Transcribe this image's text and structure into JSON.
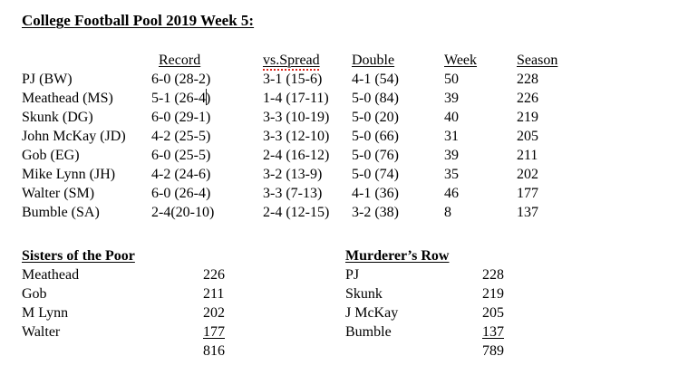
{
  "colors": {
    "background": "#ffffff",
    "text": "#000000",
    "spellcheck_underline": "#e0281e"
  },
  "title": "College Football Pool 2019 Week 5:",
  "pool_table": {
    "headers": {
      "record": "Record",
      "vs_spread": "vs.Spread",
      "double": "Double",
      "week": "Week",
      "season": "Season"
    },
    "rows": [
      {
        "name": "PJ (BW)",
        "record": "6-0 (28-2)",
        "vs_spread": "3-1 (15-6)",
        "double": "4-1 (54)",
        "week": "50",
        "season": "228"
      },
      {
        "name": "Meathead (MS)",
        "record_before_cursor": "5-1 (26-4",
        "record_after_cursor": ")",
        "vs_spread": "1-4 (17-11)",
        "double": "5-0 (84)",
        "week": "39",
        "season": "226"
      },
      {
        "name": "Skunk (DG)",
        "record": "6-0 (29-1)",
        "vs_spread": "3-3 (10-19)",
        "double": "5-0 (20)",
        "week": "40",
        "season": "219"
      },
      {
        "name": "John McKay (JD)",
        "record": "4-2 (25-5)",
        "vs_spread": "3-3 (12-10)",
        "double": "5-0 (66)",
        "week": "31",
        "season": "205"
      },
      {
        "name": "Gob (EG)",
        "record": "6-0 (25-5)",
        "vs_spread": "2-4 (16-12)",
        "double": "5-0 (76)",
        "week": "39",
        "season": "211"
      },
      {
        "name": "Mike Lynn (JH)",
        "record": "4-2 (24-6)",
        "vs_spread": "3-2 (13-9)",
        "double": "5-0 (74)",
        "week": "35",
        "season": "202"
      },
      {
        "name": "Walter (SM)",
        "record": "6-0 (26-4)",
        "vs_spread": "3-3 (7-13)",
        "double": "4-1 (36)",
        "week": "46",
        "season": "177"
      },
      {
        "name": "Bumble (SA)",
        "record": "2-4(20-10)",
        "vs_spread": "2-4 (12-15)",
        "double": "3-2 (38)",
        "week": "8",
        "season": "137"
      }
    ]
  },
  "standings": {
    "left": {
      "title": "Sisters of the Poor",
      "rows": [
        {
          "name": "Meathead",
          "value": "226"
        },
        {
          "name": "Gob",
          "value": "211"
        },
        {
          "name": "M Lynn",
          "value": "202"
        },
        {
          "name": "Walter",
          "value": "177"
        }
      ],
      "total": "816"
    },
    "right": {
      "title": "Murderer’s Row",
      "rows": [
        {
          "name": "PJ",
          "value": "228"
        },
        {
          "name": "Skunk",
          "value": "219"
        },
        {
          "name": "J McKay",
          "value": "205"
        },
        {
          "name": "Bumble",
          "value": "137"
        }
      ],
      "total": "789"
    }
  }
}
